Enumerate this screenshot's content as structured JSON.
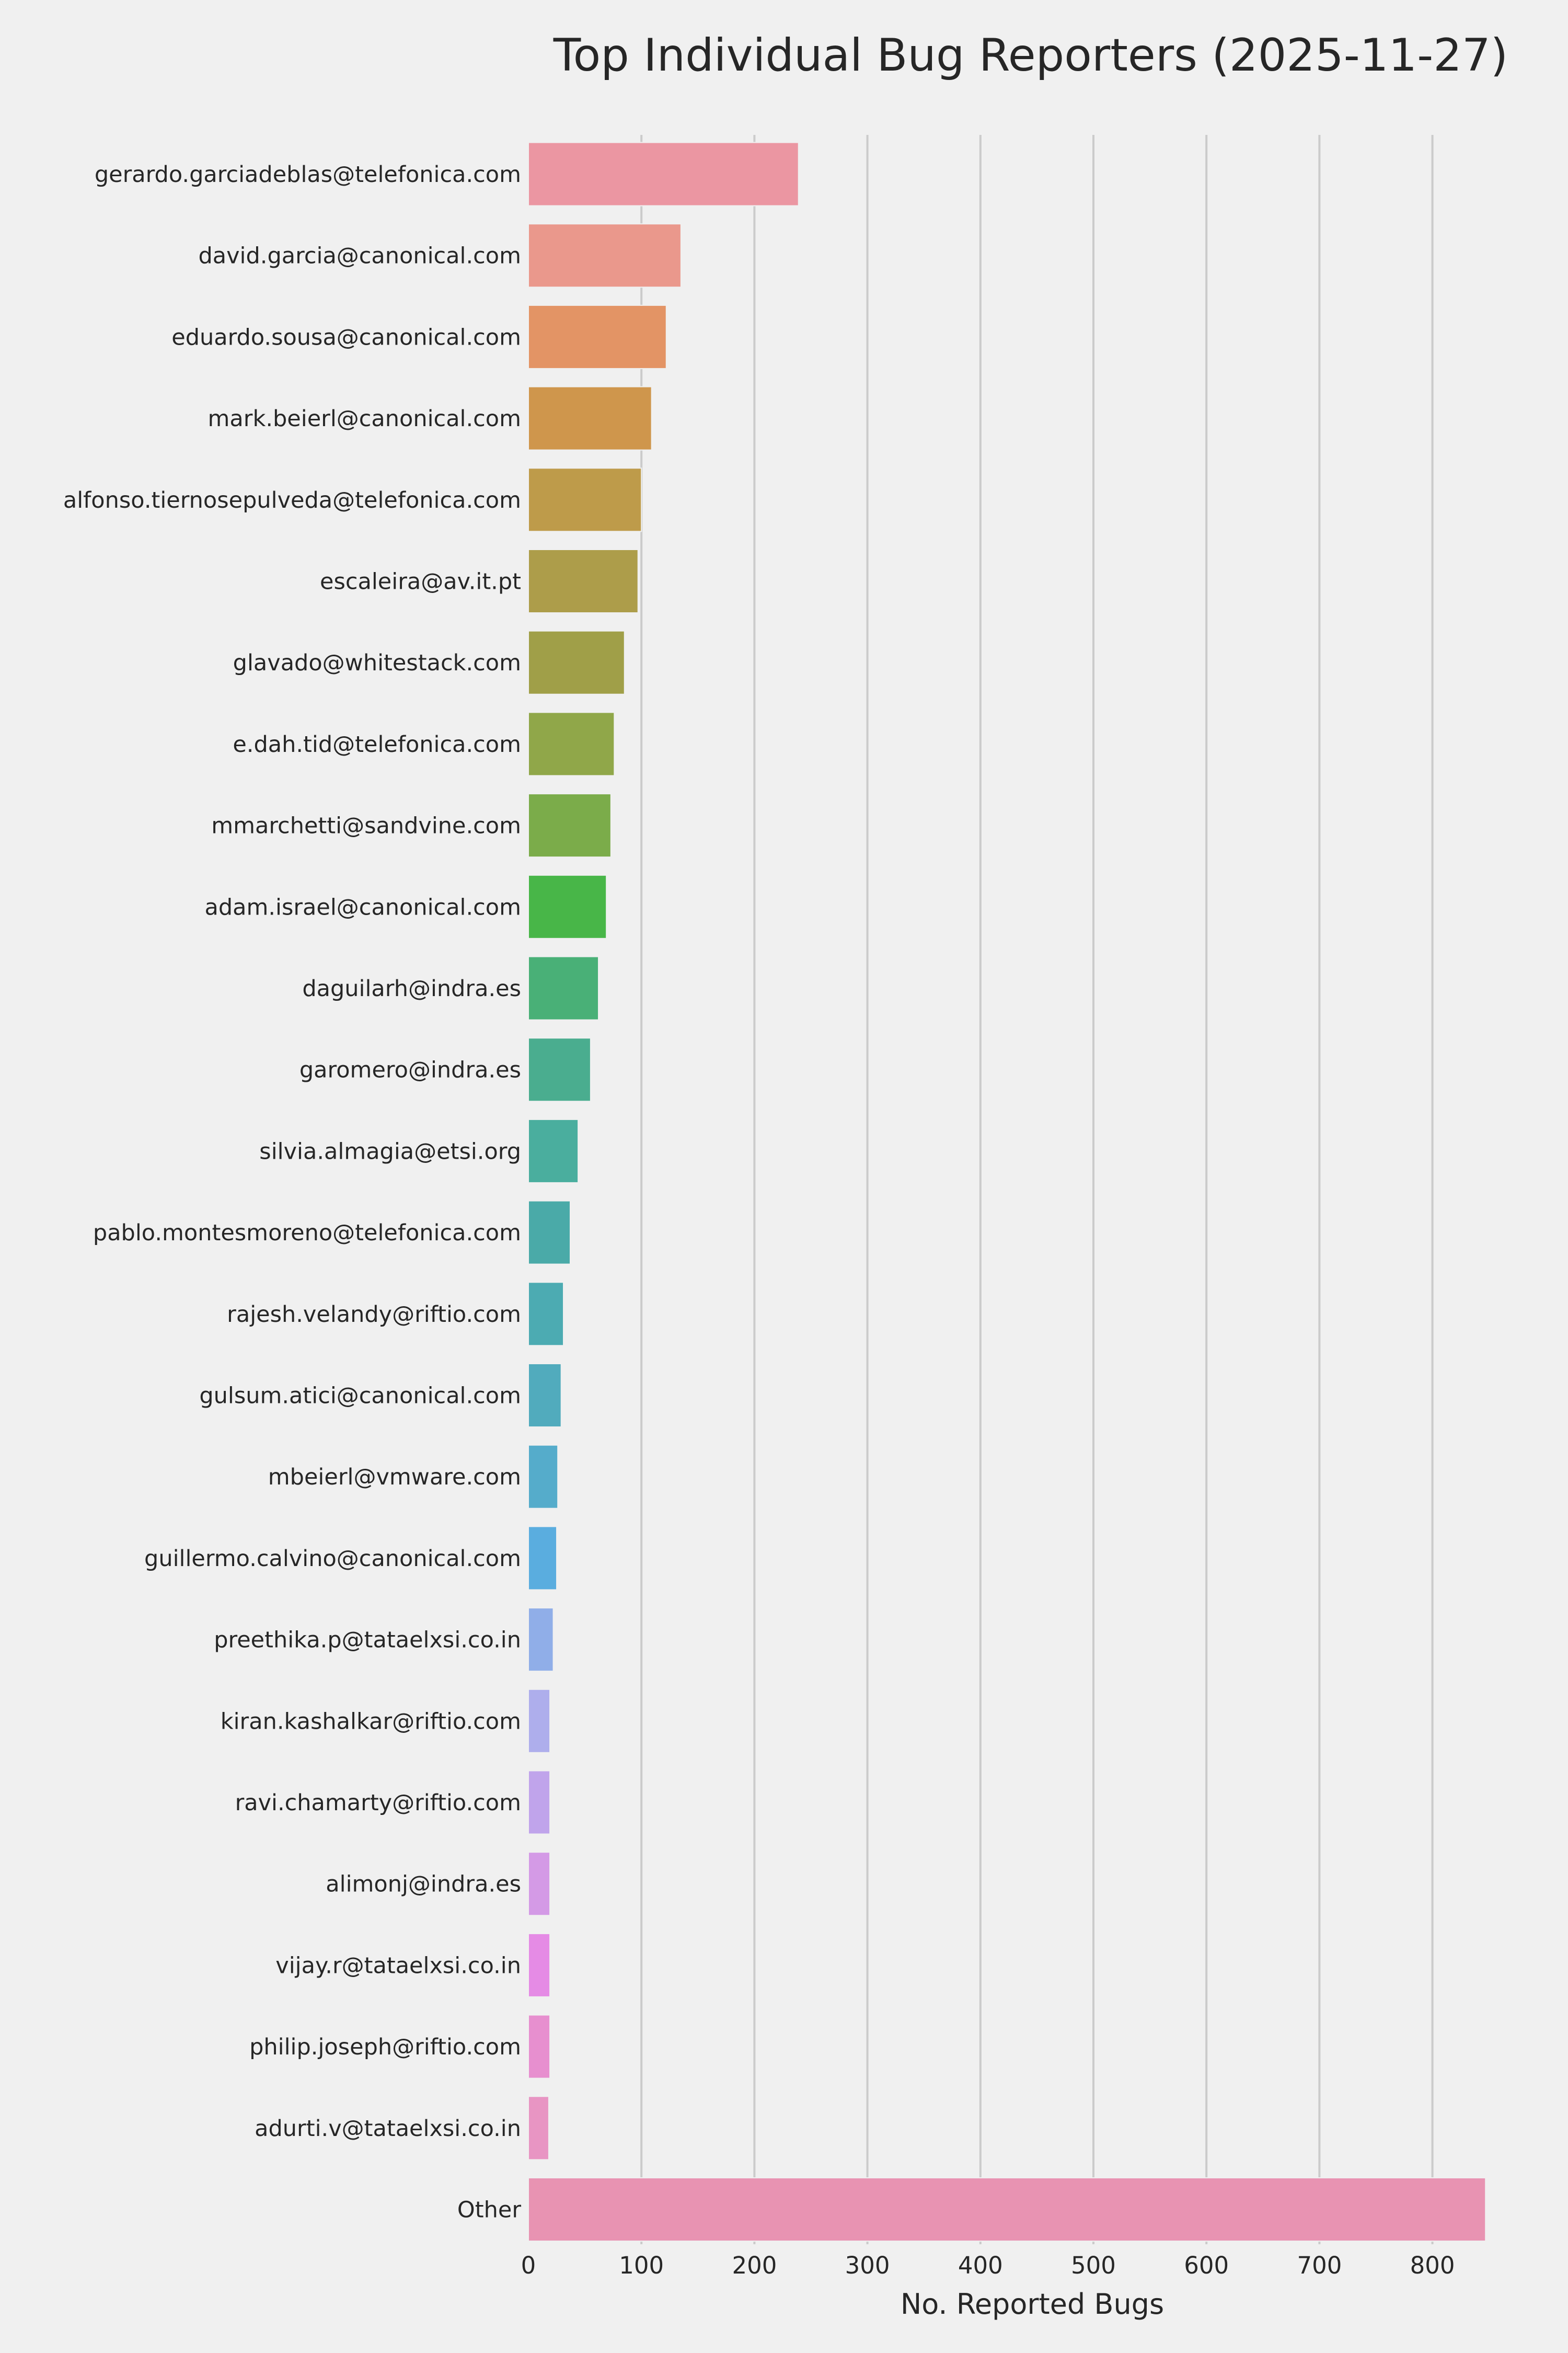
{
  "chart_data": {
    "type": "bar",
    "orientation": "horizontal",
    "title": "Top Individual Bug Reporters (2025-11-27)",
    "xlabel": "No. Reported Bugs",
    "ylabel": "",
    "xlim": [
      0,
      850
    ],
    "xticks": [
      0,
      100,
      200,
      300,
      400,
      500,
      600,
      700,
      800
    ],
    "grid": "vertical",
    "legend": "none",
    "categories": [
      "gerardo.garciadeblas@telefonica.com",
      "david.garcia@canonical.com",
      "eduardo.sousa@canonical.com",
      "mark.beierl@canonical.com",
      "alfonso.tiernosepulveda@telefonica.com",
      "escaleira@av.it.pt",
      "glavado@whitestack.com",
      "e.dah.tid@telefonica.com",
      "mmarchetti@sandvine.com",
      "adam.israel@canonical.com",
      "daguilarh@indra.es",
      "garomero@indra.es",
      "silvia.almagia@etsi.org",
      "pablo.montesmoreno@telefonica.com",
      "rajesh.velandy@riftio.com",
      "gulsum.atici@canonical.com",
      "mbeierl@vmware.com",
      "guillermo.calvino@canonical.com",
      "preethika.p@tataelxsi.co.in",
      "kiran.kashalkar@riftio.com",
      "ravi.chamarty@riftio.com",
      "alimonj@indra.es",
      "vijay.r@tataelxsi.co.in",
      "philip.joseph@riftio.com",
      "adurti.v@tataelxsi.co.in",
      "Other"
    ],
    "values": [
      239,
      135,
      122,
      109,
      100,
      97,
      85,
      76,
      73,
      69,
      62,
      55,
      44,
      37,
      31,
      29,
      26,
      25,
      22,
      19,
      19,
      19,
      19,
      19,
      18,
      847
    ],
    "colors": [
      "#eb96a2",
      "#ea988c",
      "#e39465",
      "#cf964c",
      "#be9b4a",
      "#ad9d4a",
      "#a09f48",
      "#90a749",
      "#7bac4a",
      "#48b648",
      "#49b077",
      "#4aad8f",
      "#4aae9e",
      "#4aaaa8",
      "#4cabb2",
      "#51abbd",
      "#55accb",
      "#5aaddf",
      "#90aee8",
      "#aeaeec",
      "#c0a4eb",
      "#d49ae6",
      "#e58be5",
      "#e78fcf",
      "#e895c3",
      "#e893b2"
    ]
  }
}
